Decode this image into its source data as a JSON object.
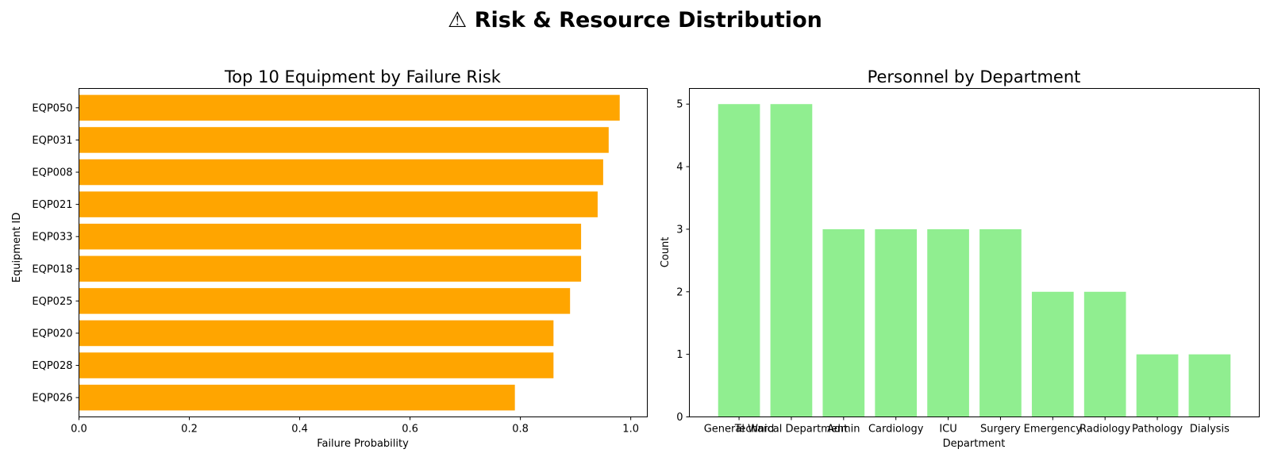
{
  "figure": {
    "title": "⚠ Risk & Resource Distribution"
  },
  "chart_data": [
    {
      "type": "bar",
      "orientation": "horizontal",
      "title": "Top 10 Equipment by Failure Risk",
      "xlabel": "Failure Probability",
      "ylabel": "Equipment ID",
      "categories": [
        "EQP050",
        "EQP031",
        "EQP008",
        "EQP021",
        "EQP033",
        "EQP018",
        "EQP025",
        "EQP020",
        "EQP028",
        "EQP026"
      ],
      "values": [
        0.98,
        0.96,
        0.95,
        0.94,
        0.91,
        0.91,
        0.89,
        0.86,
        0.86,
        0.79
      ],
      "xlim": [
        0,
        1.03
      ],
      "xticks": [
        "0.0",
        "0.2",
        "0.4",
        "0.6",
        "0.8",
        "1.0"
      ],
      "color": "#ffa500",
      "grid": false
    },
    {
      "type": "bar",
      "orientation": "vertical",
      "title": "Personnel by Department",
      "xlabel": "Department",
      "ylabel": "Count",
      "categories": [
        "General Ward",
        "Technical Department",
        "Admin",
        "Cardiology",
        "ICU",
        "Surgery",
        "Emergency",
        "Radiology",
        "Pathology",
        "Dialysis"
      ],
      "values": [
        5,
        5,
        3,
        3,
        3,
        3,
        2,
        2,
        1,
        1
      ],
      "ylim": [
        0,
        5.25
      ],
      "yticks": [
        "0",
        "1",
        "2",
        "3",
        "4",
        "5"
      ],
      "color": "#90ee90",
      "grid": false
    }
  ]
}
